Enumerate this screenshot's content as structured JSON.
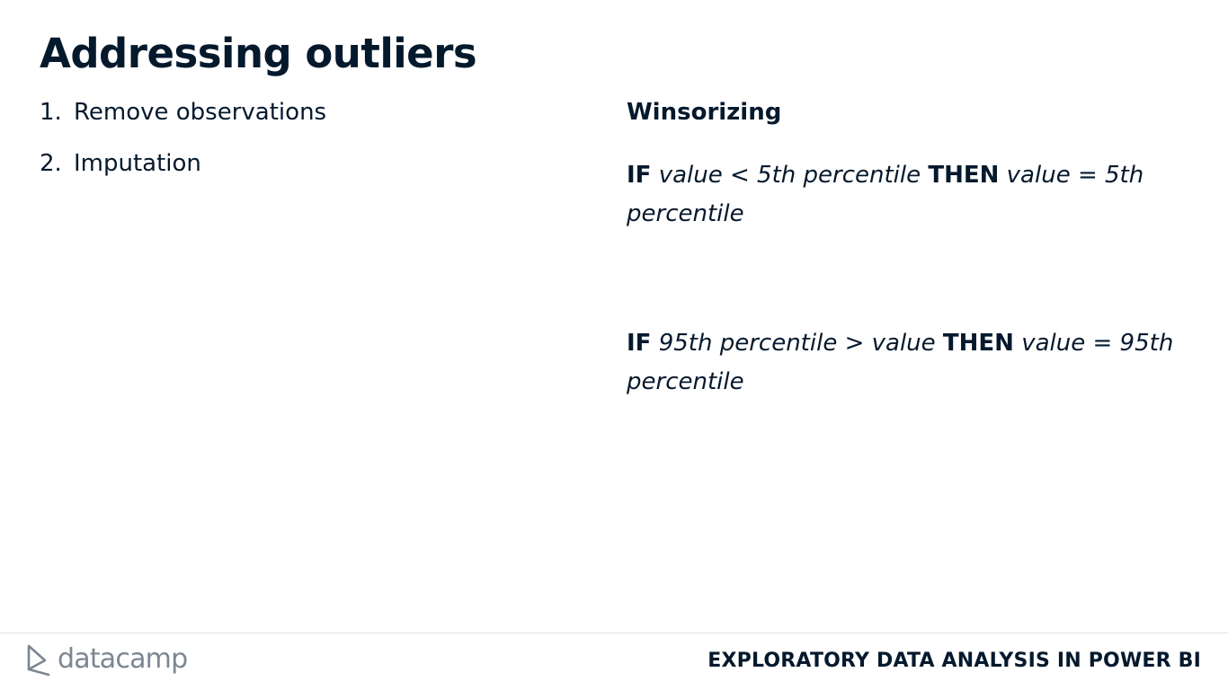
{
  "slide": {
    "title": "Addressing outliers"
  },
  "left_list": {
    "items": [
      {
        "number": "1.",
        "label": "Remove observations"
      },
      {
        "number": "2.",
        "label": "Imputation"
      }
    ]
  },
  "right": {
    "heading": "Winsorizing",
    "rules": [
      {
        "if_kw": "IF",
        "condition": "value < 5th percentile",
        "then_kw": "THEN",
        "result": "value = 5th percentile"
      },
      {
        "if_kw": "IF",
        "condition": "95th percentile > value",
        "then_kw": "THEN",
        "result": "value = 95th percentile"
      }
    ]
  },
  "footer": {
    "brand": "datacamp",
    "course_title": "EXPLORATORY DATA ANALYSIS IN POWER BI",
    "brand_icon": "datacamp-logo-icon"
  },
  "colors": {
    "text": "#05192d",
    "brand_gray": "#7d8692",
    "divider": "#e1e3e6",
    "background": "#ffffff"
  }
}
